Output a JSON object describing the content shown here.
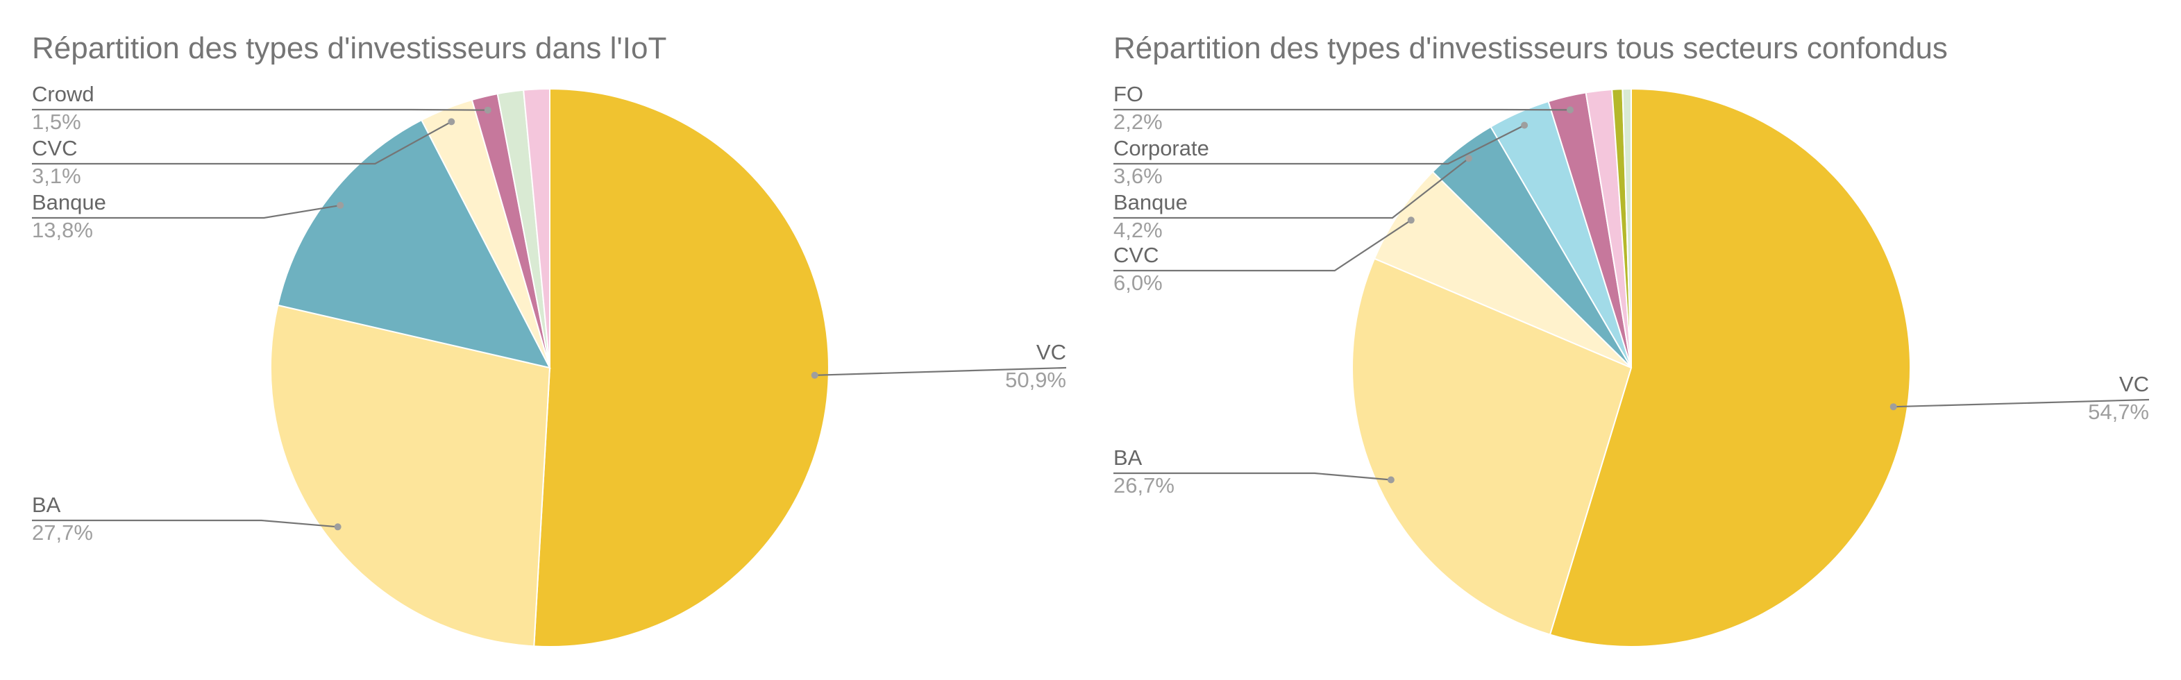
{
  "chart_data": [
    {
      "type": "pie",
      "title": "Répartition des types d'investisseurs dans l'IoT",
      "slices": [
        {
          "label": "VC",
          "value": 50.9,
          "value_text": "50,9%",
          "color": "#F0C330"
        },
        {
          "label": "BA",
          "value": 27.7,
          "value_text": "27,7%",
          "color": "#FDE59B"
        },
        {
          "label": "Banque",
          "value": 13.8,
          "value_text": "13,8%",
          "color": "#6EB1C0"
        },
        {
          "label": "CVC",
          "value": 3.1,
          "value_text": "3,1%",
          "color": "#FFF2CC"
        },
        {
          "label": "Crowd",
          "value": 1.5,
          "value_text": "1,5%",
          "color": "#C6789C"
        },
        {
          "label": "",
          "value": 1.5,
          "value_text": "",
          "color": "#D9EAD3"
        },
        {
          "label": "",
          "value": 1.5,
          "value_text": "",
          "color": "#F4C6DC"
        }
      ]
    },
    {
      "type": "pie",
      "title": "Répartition des types d'investisseurs tous secteurs confondus",
      "slices": [
        {
          "label": "VC",
          "value": 54.7,
          "value_text": "54,7%",
          "color": "#F0C330"
        },
        {
          "label": "BA",
          "value": 26.7,
          "value_text": "26,7%",
          "color": "#FDE59B"
        },
        {
          "label": "CVC",
          "value": 6.0,
          "value_text": "6,0%",
          "color": "#FFF2CC"
        },
        {
          "label": "Banque",
          "value": 4.2,
          "value_text": "4,2%",
          "color": "#6EB1C0"
        },
        {
          "label": "Corporate",
          "value": 3.6,
          "value_text": "3,6%",
          "color": "#A2DBE8"
        },
        {
          "label": "FO",
          "value": 2.2,
          "value_text": "2,2%",
          "color": "#C6789C"
        },
        {
          "label": "",
          "value": 1.5,
          "value_text": "",
          "color": "#F4C6DC"
        },
        {
          "label": "",
          "value": 0.6,
          "value_text": "",
          "color": "#B5B82A"
        },
        {
          "label": "",
          "value": 0.5,
          "value_text": "",
          "color": "#D9EAD3"
        }
      ]
    }
  ]
}
